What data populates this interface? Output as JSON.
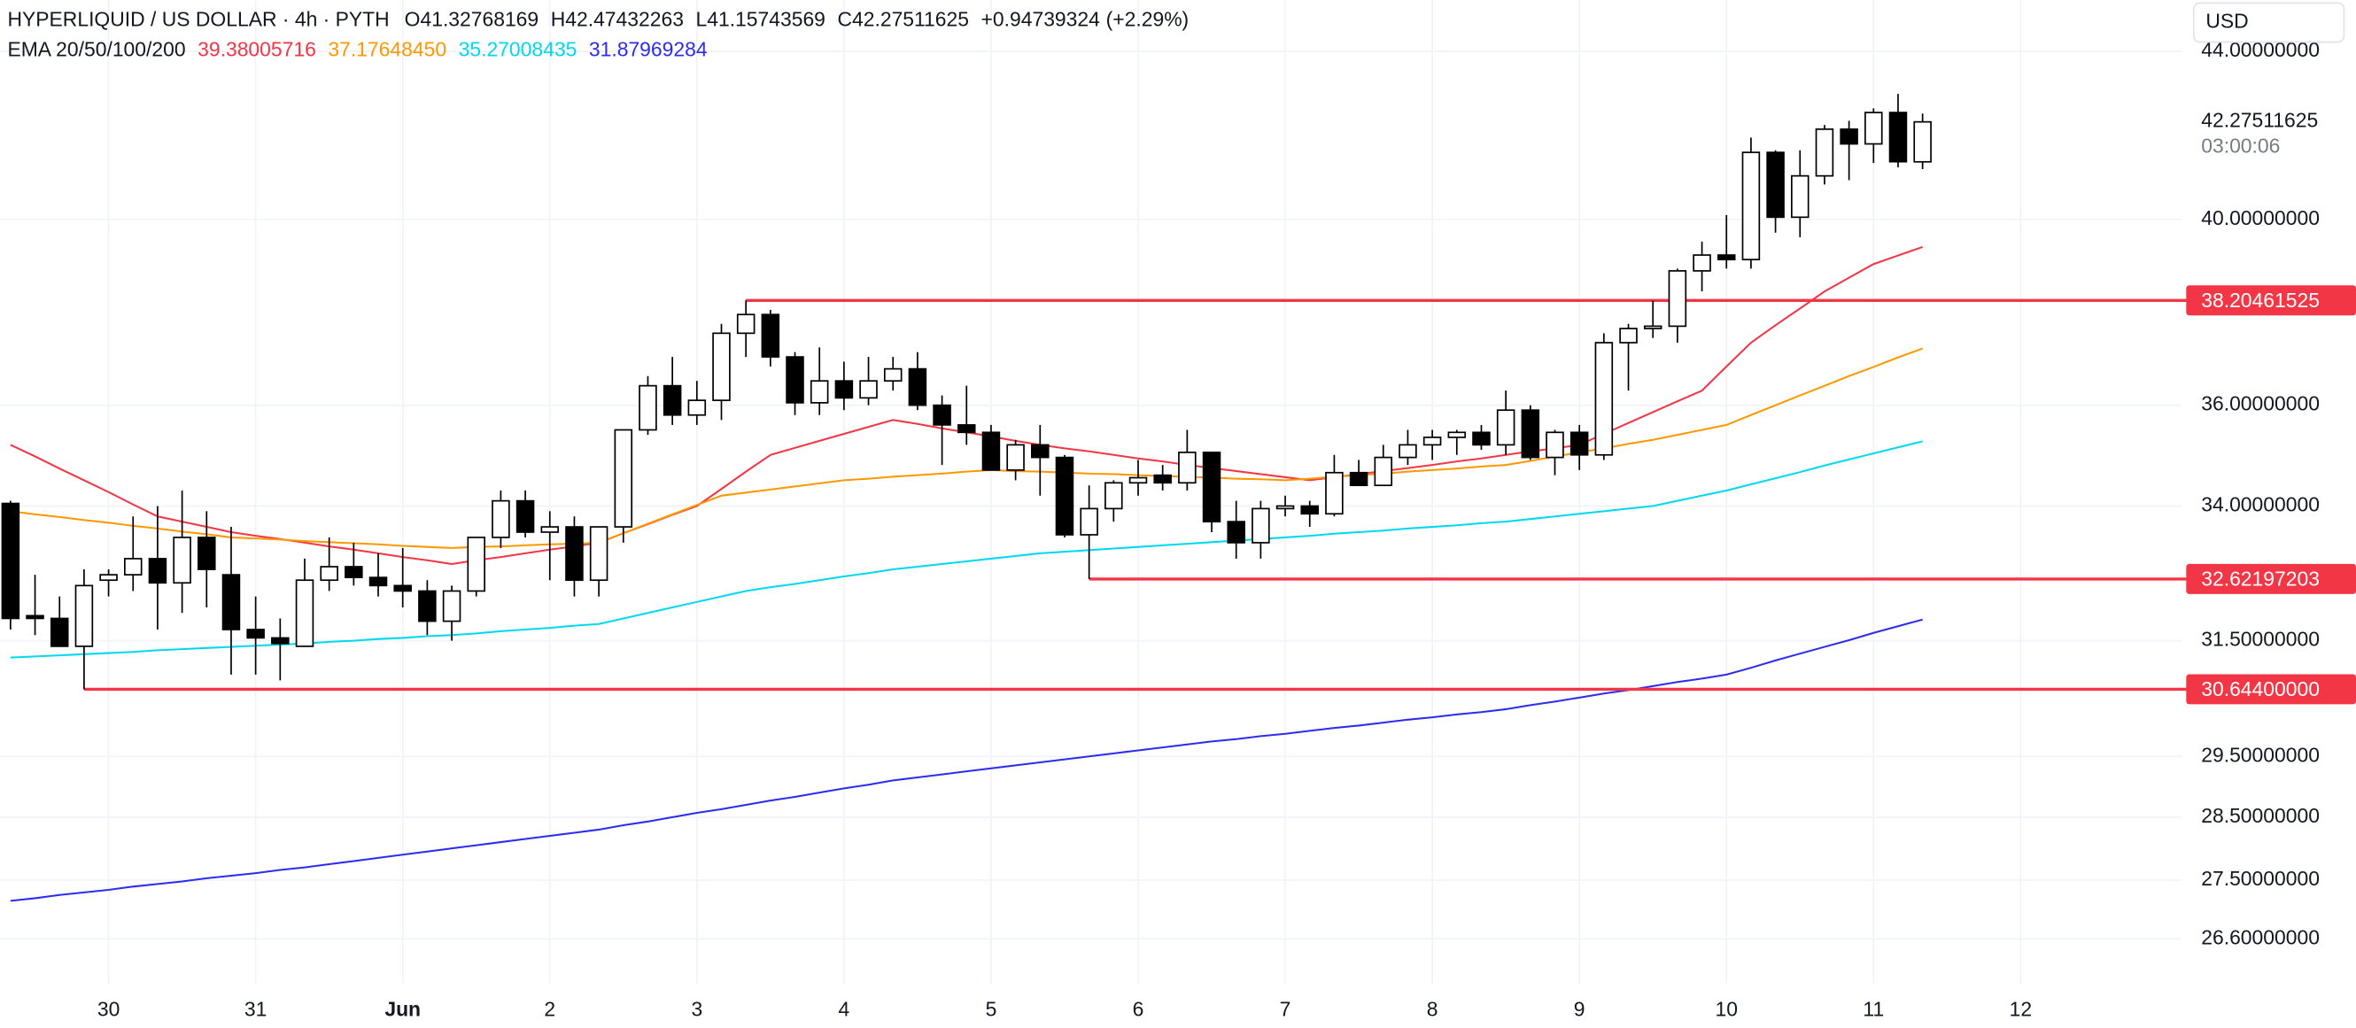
{
  "chart_data": {
    "type": "candlestick",
    "title": "HYPERLIQUID / US DOLLAR · 4h · PYTH",
    "ohlc_letters": [
      "O",
      "H",
      "L",
      "C"
    ],
    "change": 0.94739324,
    "change_label": "+0.94739324",
    "change_pct": 2.29,
    "change_pct_label": "(+2.29%)",
    "indicator_label": "EMA 20/50/100/200",
    "currency": "USD",
    "countdown": "03:00:06",
    "log_scale": true,
    "grid": true,
    "ylim": [
      25.93,
      45.3
    ],
    "yticks": [
      {
        "value": 44,
        "label": "44.00000000"
      },
      {
        "value": 40,
        "label": "40.00000000"
      },
      {
        "value": 36,
        "label": "36.00000000"
      },
      {
        "value": 34,
        "label": "34.00000000"
      },
      {
        "value": 31.5,
        "label": "31.50000000"
      },
      {
        "value": 29.5,
        "label": "29.50000000"
      },
      {
        "value": 28.5,
        "label": "28.50000000"
      },
      {
        "value": 27.5,
        "label": "27.50000000"
      },
      {
        "value": 26.6,
        "label": "26.60000000"
      }
    ],
    "categories": [
      null,
      null,
      null,
      null,
      "30",
      null,
      null,
      null,
      null,
      null,
      "31",
      null,
      null,
      null,
      null,
      null,
      "Jun",
      null,
      null,
      null,
      null,
      null,
      "2",
      null,
      null,
      null,
      null,
      null,
      "3",
      null,
      null,
      null,
      null,
      null,
      "4",
      null,
      null,
      null,
      null,
      null,
      "5",
      null,
      null,
      null,
      null,
      null,
      "6",
      null,
      null,
      null,
      null,
      null,
      "7",
      null,
      null,
      null,
      null,
      null,
      "8",
      null,
      null,
      null,
      null,
      null,
      "9",
      null,
      null,
      null,
      null,
      null,
      "10",
      null,
      null,
      null,
      null,
      null,
      "11",
      null,
      null,
      null,
      null,
      null,
      "12",
      null,
      null,
      null,
      null,
      null,
      null
    ],
    "up_color": "#ffffff",
    "down_color": "#000000",
    "wick_color": "#000000",
    "candles": {
      "open": [
        34.05,
        31.95,
        31.9,
        31.4,
        32.6,
        32.7,
        33.0,
        32.55,
        33.4,
        32.7,
        31.7,
        31.55,
        31.4,
        32.6,
        32.85,
        32.65,
        32.5,
        32.4,
        31.85,
        32.4,
        33.4,
        34.1,
        33.5,
        33.6,
        32.6,
        33.6,
        35.5,
        36.4,
        35.8,
        36.1,
        37.5,
        37.9,
        37.0,
        36.05,
        36.5,
        36.15,
        36.5,
        36.75,
        36.0,
        35.6,
        35.45,
        34.7,
        35.2,
        34.95,
        33.45,
        33.95,
        34.45,
        34.6,
        34.45,
        35.05,
        33.7,
        33.3,
        33.95,
        34.0,
        33.85,
        34.65,
        34.4,
        34.95,
        35.2,
        35.35,
        35.45,
        35.2,
        35.9,
        34.95,
        35.45,
        35.0,
        37.3,
        37.6,
        37.65,
        38.85,
        39.2,
        39.1,
        41.55,
        40.05,
        41.0,
        42.1,
        41.75,
        42.5,
        41.32768169,
        null,
        null,
        null,
        null,
        null,
        null,
        null,
        null,
        null,
        null
      ],
      "high": [
        34.1,
        32.7,
        32.3,
        32.8,
        32.8,
        33.8,
        34.0,
        34.3,
        33.9,
        33.6,
        32.3,
        31.9,
        33.0,
        33.4,
        33.3,
        33.1,
        33.2,
        32.6,
        32.5,
        33.4,
        34.3,
        34.3,
        33.9,
        33.8,
        33.6,
        35.5,
        36.6,
        37.0,
        36.5,
        37.7,
        38.20461525,
        38.0,
        37.1,
        37.2,
        36.9,
        37.0,
        37.0,
        37.1,
        36.2,
        36.4,
        35.6,
        35.3,
        35.6,
        35.0,
        34.4,
        34.5,
        34.9,
        34.8,
        35.5,
        35.05,
        34.1,
        34.1,
        34.2,
        34.1,
        35.0,
        34.9,
        35.2,
        35.5,
        35.5,
        35.5,
        35.6,
        36.3,
        36.0,
        35.5,
        35.6,
        37.5,
        37.7,
        38.2,
        38.9,
        39.5,
        40.1,
        41.9,
        41.6,
        41.6,
        42.2,
        42.3,
        42.6,
        42.95,
        42.47432263,
        null,
        null,
        null,
        null,
        null,
        null,
        null,
        null,
        null,
        null
      ],
      "low": [
        31.7,
        31.6,
        31.4,
        30.644,
        32.3,
        32.4,
        31.7,
        32.0,
        32.1,
        30.9,
        30.9,
        30.8,
        31.4,
        32.4,
        32.5,
        32.3,
        32.1,
        31.6,
        31.5,
        32.3,
        33.2,
        33.4,
        32.6,
        32.3,
        32.3,
        33.3,
        35.4,
        35.6,
        35.6,
        35.7,
        37.0,
        36.8,
        35.8,
        35.8,
        35.9,
        36.0,
        36.3,
        35.9,
        34.8,
        35.2,
        34.7,
        34.5,
        34.2,
        33.4,
        32.62197203,
        33.7,
        34.2,
        34.3,
        34.3,
        33.5,
        33.0,
        33.0,
        33.8,
        33.6,
        33.8,
        34.4,
        34.4,
        34.8,
        34.9,
        35.0,
        35.1,
        35.0,
        34.9,
        34.6,
        34.7,
        34.9,
        36.3,
        37.4,
        37.3,
        38.4,
        38.9,
        38.9,
        39.7,
        39.6,
        40.8,
        40.9,
        41.3,
        41.2,
        41.15743569,
        null,
        null,
        null,
        null,
        null,
        null,
        null,
        null,
        null,
        null
      ],
      "close": [
        31.9,
        31.9,
        31.4,
        32.5,
        32.7,
        33.0,
        32.55,
        33.4,
        32.8,
        31.7,
        31.55,
        31.45,
        32.6,
        32.85,
        32.65,
        32.5,
        32.4,
        31.85,
        32.4,
        33.4,
        34.1,
        33.5,
        33.6,
        32.6,
        33.6,
        35.5,
        36.4,
        35.8,
        36.1,
        37.5,
        37.9,
        37.0,
        36.05,
        36.5,
        36.15,
        36.5,
        36.75,
        36.0,
        35.6,
        35.45,
        34.7,
        35.2,
        34.95,
        33.45,
        33.95,
        34.45,
        34.55,
        34.45,
        35.05,
        33.7,
        33.3,
        33.95,
        34.0,
        33.85,
        34.65,
        34.4,
        34.95,
        35.2,
        35.35,
        35.45,
        35.2,
        35.9,
        34.95,
        35.45,
        35.0,
        37.3,
        37.6,
        37.65,
        38.85,
        39.2,
        39.1,
        41.55,
        40.05,
        41.0,
        42.1,
        41.75,
        42.5,
        41.33,
        42.27511625,
        null,
        null,
        null,
        null,
        null,
        null,
        null,
        null,
        null,
        null
      ]
    },
    "series": [
      {
        "color": "#f23645",
        "last_value_label": "39.38005716",
        "values": [
          35.2,
          34.97,
          34.73,
          34.5,
          34.27,
          34.03,
          33.8,
          33.7,
          33.6,
          33.5,
          33.43,
          33.37,
          33.3,
          33.23,
          33.17,
          33.1,
          33.03,
          32.97,
          32.9,
          32.97,
          33.03,
          33.1,
          33.17,
          33.23,
          33.3,
          33.48,
          33.65,
          33.83,
          34.0,
          34.33,
          34.67,
          35.0,
          35.14,
          35.28,
          35.42,
          35.56,
          35.7,
          35.62,
          35.53,
          35.45,
          35.37,
          35.28,
          35.2,
          35.13,
          35.07,
          35.0,
          34.93,
          34.87,
          34.8,
          34.74,
          34.68,
          34.62,
          34.56,
          34.5,
          34.56,
          34.62,
          34.68,
          34.74,
          34.8,
          34.87,
          34.93,
          35.0,
          35.07,
          35.13,
          35.2,
          35.42,
          35.64,
          35.86,
          36.08,
          36.3,
          36.8,
          37.3,
          37.67,
          38.03,
          38.4,
          38.7,
          39.0,
          39.19,
          39.38005716,
          null,
          null,
          null,
          null,
          null,
          null,
          null,
          null,
          null,
          null
        ]
      },
      {
        "color": "#ff9800",
        "last_value_label": "37.17648450",
        "values": [
          33.9,
          33.84,
          33.79,
          33.73,
          33.68,
          33.62,
          33.57,
          33.51,
          33.46,
          33.4,
          33.38,
          33.36,
          33.33,
          33.31,
          33.29,
          33.27,
          33.24,
          33.22,
          33.2,
          33.22,
          33.23,
          33.25,
          33.27,
          33.28,
          33.3,
          33.48,
          33.66,
          33.84,
          34.02,
          34.2,
          34.26,
          34.32,
          34.38,
          34.44,
          34.5,
          34.53,
          34.57,
          34.6,
          34.63,
          34.67,
          34.7,
          34.68,
          34.67,
          34.65,
          34.63,
          34.62,
          34.6,
          34.58,
          34.57,
          34.55,
          34.53,
          34.52,
          34.5,
          34.53,
          34.57,
          34.6,
          34.63,
          34.67,
          34.7,
          34.73,
          34.77,
          34.8,
          34.88,
          34.97,
          35.05,
          35.13,
          35.22,
          35.3,
          35.4,
          35.5,
          35.6,
          35.8,
          36.0,
          36.2,
          36.4,
          36.6,
          36.79,
          36.99,
          37.1764845,
          null,
          null,
          null,
          null,
          null,
          null,
          null,
          null,
          null,
          null
        ]
      },
      {
        "color": "#00d8f0",
        "last_value_label": "35.27008435",
        "values": [
          31.2,
          31.22,
          31.24,
          31.26,
          31.28,
          31.3,
          31.33,
          31.35,
          31.37,
          31.39,
          31.41,
          31.43,
          31.45,
          31.48,
          31.5,
          31.53,
          31.55,
          31.58,
          31.6,
          31.63,
          31.67,
          31.7,
          31.73,
          31.77,
          31.8,
          31.9,
          32.0,
          32.1,
          32.2,
          32.3,
          32.4,
          32.47,
          32.53,
          32.6,
          32.67,
          32.73,
          32.8,
          32.85,
          32.9,
          32.95,
          33.0,
          33.05,
          33.1,
          33.13,
          33.16,
          33.19,
          33.22,
          33.25,
          33.28,
          33.31,
          33.34,
          33.37,
          33.4,
          33.43,
          33.47,
          33.5,
          33.53,
          33.57,
          33.6,
          33.63,
          33.67,
          33.7,
          33.75,
          33.8,
          33.85,
          33.9,
          33.95,
          34.0,
          34.1,
          34.2,
          34.3,
          34.42,
          34.54,
          34.66,
          34.79,
          34.91,
          35.03,
          35.15,
          35.27008435,
          null,
          null,
          null,
          null,
          null,
          null,
          null,
          null,
          null,
          null
        ]
      },
      {
        "color": "#2c2cf0",
        "last_value_label": "31.87969284",
        "values": [
          27.18,
          27.22,
          27.27,
          27.31,
          27.35,
          27.4,
          27.44,
          27.48,
          27.53,
          27.57,
          27.61,
          27.66,
          27.7,
          27.75,
          27.8,
          27.85,
          27.9,
          27.95,
          28.0,
          28.05,
          28.1,
          28.15,
          28.2,
          28.25,
          28.3,
          28.37,
          28.43,
          28.5,
          28.57,
          28.63,
          28.7,
          28.77,
          28.83,
          28.9,
          28.97,
          29.03,
          29.1,
          29.15,
          29.2,
          29.25,
          29.3,
          29.35,
          29.4,
          29.45,
          29.5,
          29.55,
          29.6,
          29.65,
          29.7,
          29.75,
          29.79,
          29.84,
          29.88,
          29.93,
          29.98,
          30.02,
          30.07,
          30.12,
          30.16,
          30.21,
          30.25,
          30.3,
          30.37,
          30.43,
          30.5,
          30.57,
          30.63,
          30.7,
          30.77,
          30.83,
          30.9,
          31.02,
          31.15,
          31.27,
          31.39,
          31.51,
          31.64,
          31.76,
          31.87969284,
          null,
          null,
          null,
          null,
          null,
          null,
          null,
          null,
          null,
          null
        ]
      }
    ],
    "levels": [
      {
        "value": 38.20461525,
        "label": "38.20461525",
        "color": "#f23645"
      },
      {
        "value": 32.62197203,
        "label": "32.62197203",
        "color": "#f23645"
      },
      {
        "value": 30.644,
        "label": "30.64400000",
        "color": "#f23645"
      }
    ]
  }
}
